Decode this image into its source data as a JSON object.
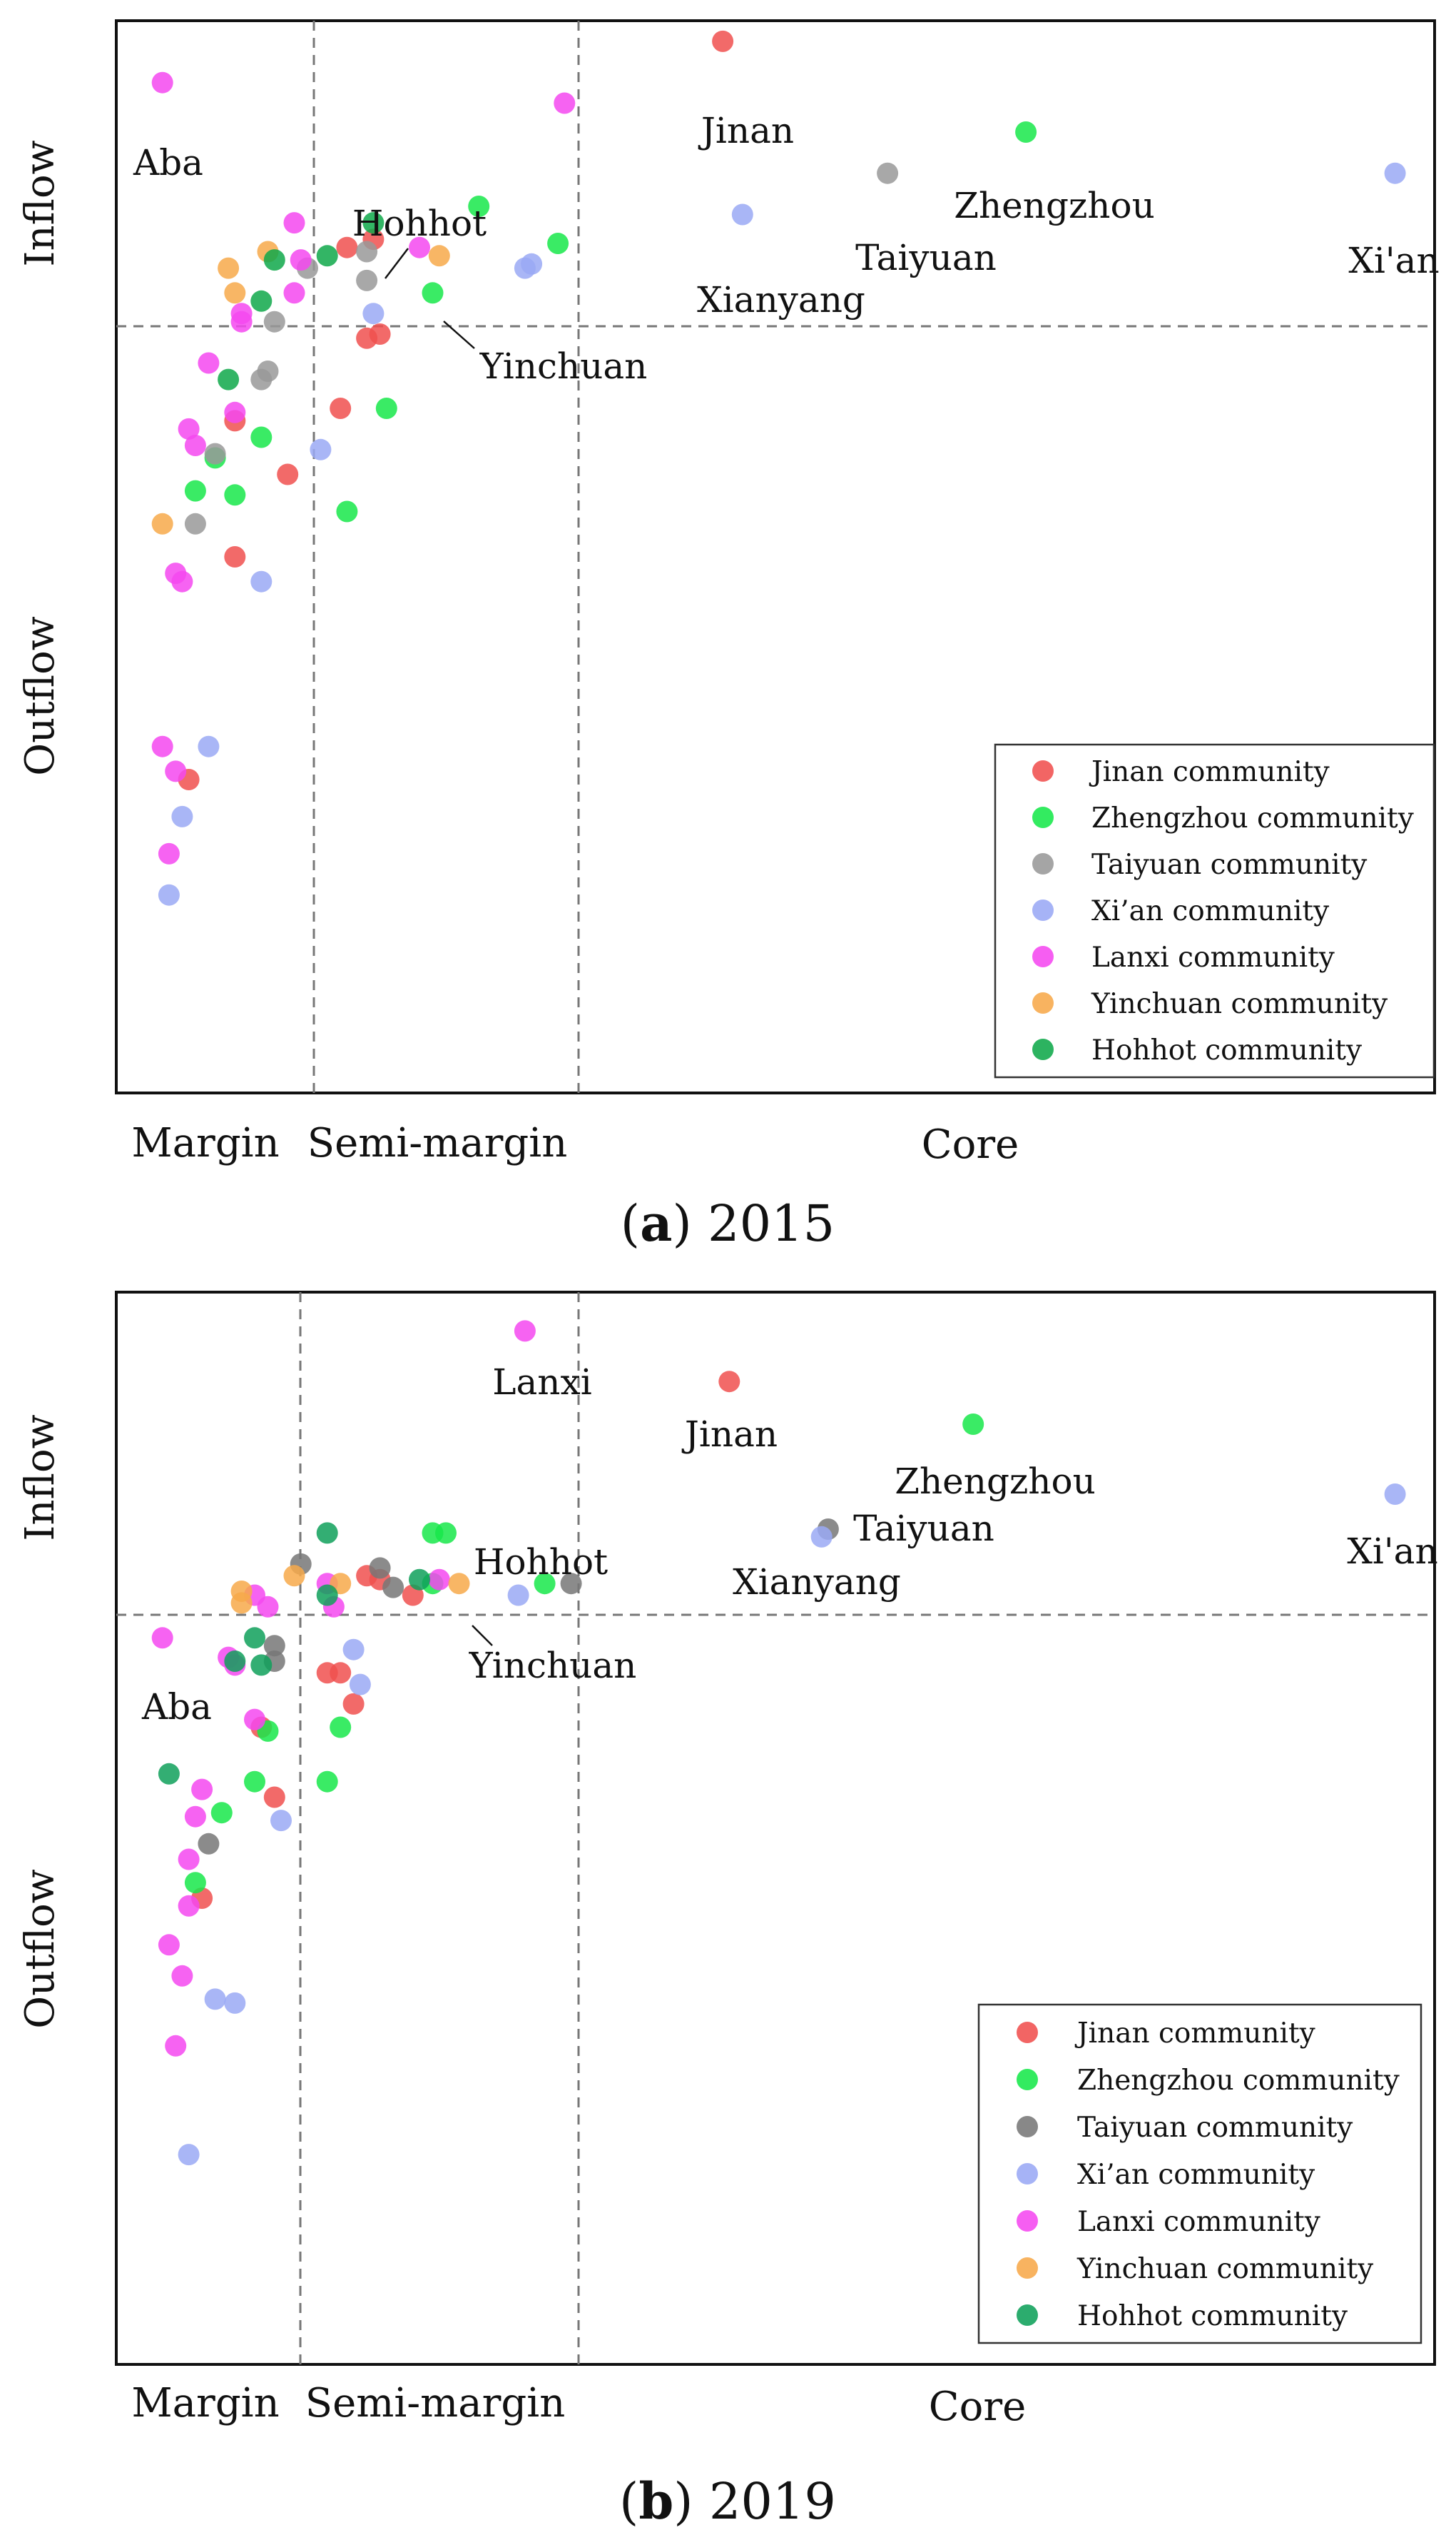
{
  "panels": [
    {
      "caption_letter": "a",
      "caption_year": "2015",
      "y_axis": {
        "top_label": "Inflow",
        "bottom_label": "Outflow"
      },
      "x_axis": {
        "labels": [
          "Margin",
          "Semi-margin",
          "Core"
        ]
      },
      "legend": [
        {
          "label": "Jinan community",
          "color": "#f0504f"
        },
        {
          "label": "Zhengzhou community",
          "color": "#17e84a"
        },
        {
          "label": "Taiyuan community",
          "color": "#999999"
        },
        {
          "label": "Xi’an community",
          "color": "#9aa9f5"
        },
        {
          "label": "Lanxi community",
          "color": "#f548f0"
        },
        {
          "label": "Yinchuan community",
          "color": "#f7a94a"
        },
        {
          "label": "Hohhot community",
          "color": "#0fa84a"
        }
      ]
    },
    {
      "caption_letter": "b",
      "caption_year": "2019",
      "y_axis": {
        "top_label": "Inflow",
        "bottom_label": "Outflow"
      },
      "x_axis": {
        "labels": [
          "Margin",
          "Semi-margin",
          "Core"
        ]
      },
      "legend": [
        {
          "label": "Jinan community",
          "color": "#f0504f"
        },
        {
          "label": "Zhengzhou community",
          "color": "#17e84a"
        },
        {
          "label": "Taiyuan community",
          "color": "#777777"
        },
        {
          "label": "Xi’an community",
          "color": "#9aa9f5"
        },
        {
          "label": "Lanxi community",
          "color": "#f548f0"
        },
        {
          "label": "Yinchuan community",
          "color": "#f7a94a"
        },
        {
          "label": "Hohhot community",
          "color": "#0fa05a"
        }
      ]
    }
  ],
  "chart_data": [
    {
      "type": "scatter",
      "title": "(a) 2015",
      "xlabel": "Margin / Semi-margin / Core",
      "ylabel": "Inflow / Outflow",
      "xlim": [
        0,
        100
      ],
      "ylim": [
        -100,
        30
      ],
      "thresholds": {
        "margin_semi": 14.5,
        "semi_core": 34,
        "flow_zero": 0
      },
      "series": [
        {
          "name": "Jinan community",
          "points": [
            [
              46,
              27.5,
              "Jinan"
            ],
            [
              17.5,
              2.5
            ],
            [
              19.5,
              3.5
            ],
            [
              19,
              -8.5
            ],
            [
              20,
              -8
            ],
            [
              17,
              -17
            ],
            [
              9,
              -18.5
            ],
            [
              13,
              -25
            ],
            [
              9,
              -35
            ],
            [
              5.5,
              -62
            ]
          ]
        },
        {
          "name": "Zhengzhou community",
          "points": [
            [
              69,
              16.5,
              "Zhengzhou"
            ],
            [
              27.5,
              7.5
            ],
            [
              33.5,
              3
            ],
            [
              24,
              -3
            ],
            [
              20.5,
              -17
            ],
            [
              11,
              -20.5
            ],
            [
              7.5,
              -23
            ],
            [
              6,
              -27
            ],
            [
              9,
              -27.5
            ],
            [
              17.5,
              -29.5
            ]
          ]
        },
        {
          "name": "Taiyuan community",
          "points": [
            [
              58.5,
              11.5,
              "Taiyuan"
            ],
            [
              19,
              2
            ],
            [
              19,
              -1.5
            ],
            [
              14.5,
              0
            ],
            [
              12,
              -6.5
            ],
            [
              11,
              -13.5
            ],
            [
              11.5,
              -12.5
            ],
            [
              7.5,
              -22.5
            ],
            [
              6,
              -31
            ]
          ]
        },
        {
          "name": "Xi’an community",
          "points": [
            [
              97,
              11.5,
              "Xi'an"
            ],
            [
              47.5,
              6.5,
              "Xianyang"
            ],
            [
              31.5,
              0.5
            ],
            [
              31,
              0
            ],
            [
              19.5,
              -5.5
            ],
            [
              15.5,
              -22
            ],
            [
              11,
              -38
            ],
            [
              7,
              -58
            ],
            [
              5,
              -66.5
            ],
            [
              4,
              -76
            ]
          ]
        },
        {
          "name": "Lanxi community",
          "points": [
            [
              3.5,
              22.5,
              "Aba"
            ],
            [
              34,
              20
            ],
            [
              13.5,
              5.5
            ],
            [
              14,
              1
            ],
            [
              23,
              2.5
            ],
            [
              13.5,
              -3
            ],
            [
              9.5,
              -5.5
            ],
            [
              9.5,
              -6.5
            ],
            [
              7,
              -11.5
            ],
            [
              9,
              -17.5
            ],
            [
              5.5,
              -19.5
            ],
            [
              6,
              -21.5
            ],
            [
              4.5,
              -37
            ],
            [
              5,
              -38
            ],
            [
              3.5,
              -58
            ],
            [
              4.5,
              -61
            ],
            [
              4,
              -71
            ]
          ]
        },
        {
          "name": "Yinchuan community",
          "points": [
            [
              24.5,
              1.5,
              "Yinchuan"
            ],
            [
              11.5,
              2
            ],
            [
              8.5,
              0
            ],
            [
              9,
              -3
            ],
            [
              3.5,
              -31
            ]
          ]
        },
        {
          "name": "Hohhot community",
          "points": [
            [
              19.5,
              5.5,
              "Hohhot"
            ],
            [
              12,
              1
            ],
            [
              16,
              1.5
            ],
            [
              11,
              -4
            ],
            [
              8.5,
              -13.5
            ]
          ]
        }
      ]
    },
    {
      "type": "scatter",
      "title": "(b) 2019",
      "xlabel": "Margin / Semi-margin / Core",
      "ylabel": "Inflow / Outflow",
      "xlim": [
        0,
        100
      ],
      "ylim": [
        -100,
        38
      ],
      "thresholds": {
        "margin_semi": 14,
        "semi_core": 35,
        "flow_zero": 0
      },
      "series": [
        {
          "name": "Jinan community",
          "points": [
            [
              46.5,
              26.5,
              "Jinan"
            ],
            [
              19,
              1.5
            ],
            [
              20,
              1
            ],
            [
              22.5,
              -1
            ],
            [
              16,
              -11
            ],
            [
              17,
              -11
            ],
            [
              18,
              -15
            ],
            [
              11,
              -18
            ],
            [
              12,
              -27
            ],
            [
              6.5,
              -40
            ]
          ]
        },
        {
          "name": "Zhengzhou community",
          "points": [
            [
              65,
              21,
              "Zhengzhou"
            ],
            [
              24,
              7
            ],
            [
              25,
              7
            ],
            [
              24,
              0.5
            ],
            [
              32.5,
              0.5
            ],
            [
              11.5,
              -18.5
            ],
            [
              17,
              -18
            ],
            [
              10.5,
              -25
            ],
            [
              16,
              -25
            ],
            [
              8,
              -29
            ],
            [
              6,
              -38
            ]
          ]
        },
        {
          "name": "Taiyuan community",
          "points": [
            [
              54,
              7.5,
              "Taiyuan"
            ],
            [
              34.5,
              0.5
            ],
            [
              14,
              3
            ],
            [
              20,
              2.5
            ],
            [
              21,
              0
            ],
            [
              12,
              -7.5
            ],
            [
              12,
              -9.5
            ],
            [
              7,
              -33
            ]
          ]
        },
        {
          "name": "Xi’an community",
          "points": [
            [
              97,
              12,
              "Xi'an"
            ],
            [
              53.5,
              6.5,
              "Xianyang"
            ],
            [
              30.5,
              -1
            ],
            [
              18,
              -8
            ],
            [
              18.5,
              -12.5
            ],
            [
              12.5,
              -30
            ],
            [
              7.5,
              -53
            ],
            [
              9,
              -53.5
            ],
            [
              5.5,
              -73
            ]
          ]
        },
        {
          "name": "Lanxi community",
          "points": [
            [
              31,
              33,
              "Lanxi"
            ],
            [
              3.5,
              -6.5,
              "Aba"
            ],
            [
              16,
              0.5
            ],
            [
              24.5,
              1
            ],
            [
              10.5,
              -1
            ],
            [
              11.5,
              -2.5
            ],
            [
              16.5,
              -2.5
            ],
            [
              8.5,
              -9
            ],
            [
              9,
              -10
            ],
            [
              10.5,
              -17
            ],
            [
              6.5,
              -26
            ],
            [
              6,
              -29.5
            ],
            [
              5.5,
              -35
            ],
            [
              5.5,
              -41
            ],
            [
              4,
              -46
            ],
            [
              5,
              -50
            ],
            [
              4.5,
              -59
            ]
          ]
        },
        {
          "name": "Yinchuan community",
          "points": [
            [
              26,
              0.5,
              "Yinchuan"
            ],
            [
              13.5,
              1.5
            ],
            [
              17,
              0.5
            ],
            [
              9.5,
              -0.5
            ],
            [
              9.5,
              -2
            ]
          ]
        },
        {
          "name": "Hohhot community",
          "points": [
            [
              16,
              7,
              "Hohhot"
            ],
            [
              23,
              1
            ],
            [
              16,
              -1
            ],
            [
              10.5,
              -6.5
            ],
            [
              9,
              -9.5
            ],
            [
              11,
              -10
            ],
            [
              4,
              -24
            ]
          ]
        }
      ]
    }
  ]
}
